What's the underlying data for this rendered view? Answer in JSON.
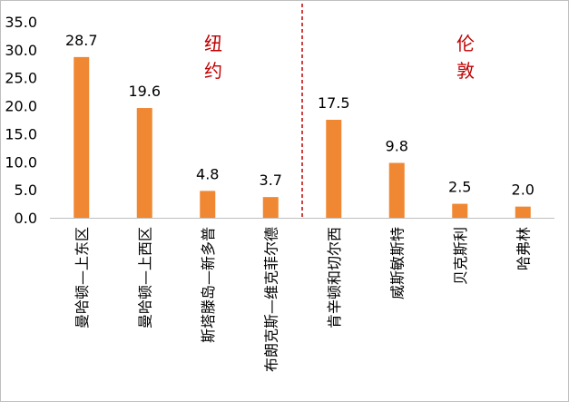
{
  "colors": {
    "bar": "#F08732",
    "divider": "#C00000",
    "group_text": "#C00000",
    "axis": "#BFBFBF"
  },
  "chart_data": {
    "type": "bar",
    "title": "",
    "xlabel": "",
    "ylabel": "",
    "ylim": [
      0,
      35
    ],
    "yticks": [
      "0.0",
      "5.0",
      "10.0",
      "15.0",
      "20.0",
      "25.0",
      "30.0",
      "35.0"
    ],
    "categories": [
      "曼哈顿—上东区",
      "曼哈顿—上西区",
      "斯塔滕岛—新多普",
      "布朗克斯—维克菲尔德",
      "肯辛顿和切尔西",
      "威斯敏斯特",
      "贝克斯利",
      "哈弗林"
    ],
    "values": [
      28.7,
      19.6,
      4.8,
      3.7,
      17.5,
      9.8,
      2.5,
      2.0
    ],
    "value_labels": [
      "28.7",
      "19.6",
      "4.8",
      "3.7",
      "17.5",
      "9.8",
      "2.5",
      "2.0"
    ],
    "groups": [
      {
        "label": "纽约",
        "categories": [
          0,
          1,
          2,
          3
        ]
      },
      {
        "label": "伦敦",
        "categories": [
          4,
          5,
          6,
          7
        ]
      }
    ],
    "grid": false,
    "legend": "none"
  }
}
